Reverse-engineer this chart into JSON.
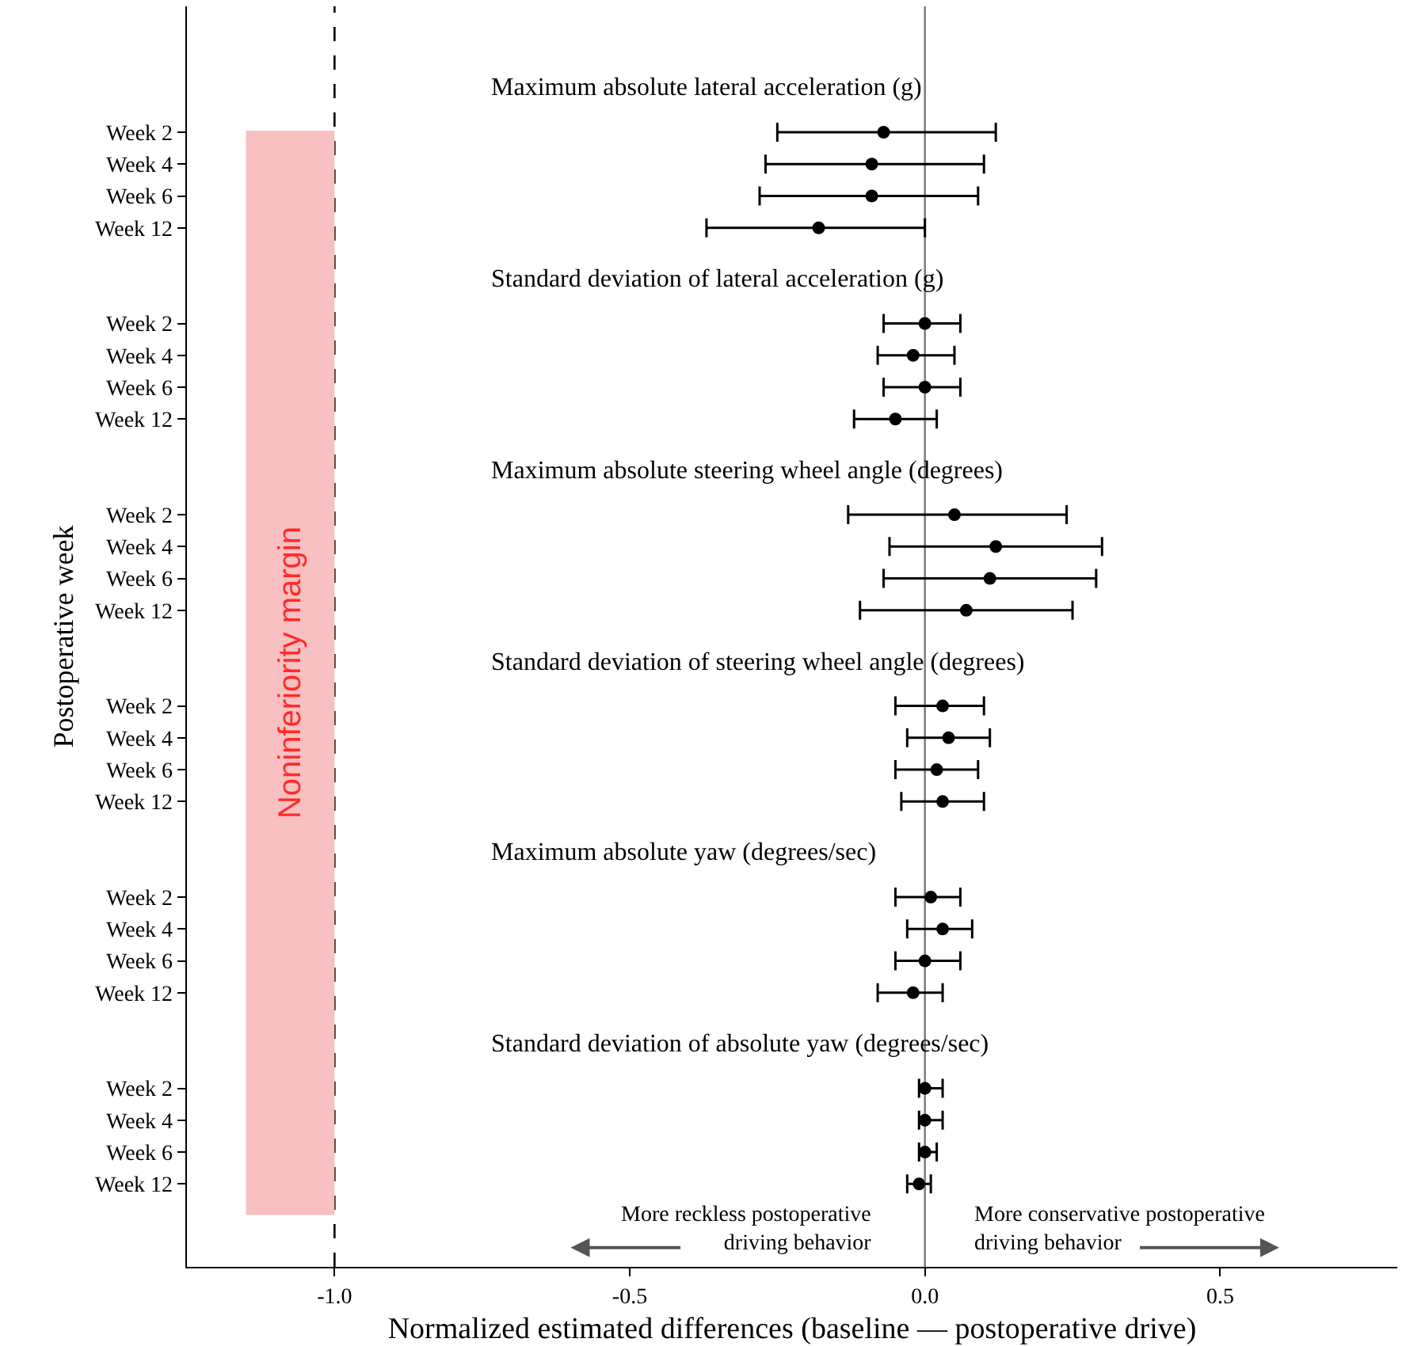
{
  "chart_data": {
    "type": "scatter",
    "orientation": "horizontal",
    "xlabel": "Normalized estimated differences (baseline — postoperative drive)",
    "ylabel": "Postoperative week",
    "categories": [
      "Week 2",
      "Week 4",
      "Week 6",
      "Week 12",
      "Week 2",
      "Week 4",
      "Week 6",
      "Week 12",
      "Week 2",
      "Week 4",
      "Week 6",
      "Week 12",
      "Week 2",
      "Week 4",
      "Week 6",
      "Week 12",
      "Week 2",
      "Week 4",
      "Week 6",
      "Week 12",
      "Week 2",
      "Week 4",
      "Week 6",
      "Week 12"
    ],
    "series": [
      {
        "color": "#000000",
        "values": [
          -0.07,
          -0.09,
          -0.09,
          -0.18,
          0.0,
          -0.02,
          0.0,
          -0.05,
          0.05,
          0.12,
          0.11,
          0.07,
          0.03,
          0.04,
          0.02,
          0.03,
          0.01,
          0.03,
          0.0,
          -0.02,
          0.0,
          0.0,
          0.0,
          -0.01
        ],
        "errors": [
          [
            -0.25,
            0.12
          ],
          [
            -0.27,
            0.1
          ],
          [
            -0.28,
            0.09
          ],
          [
            -0.37,
            0.0
          ],
          [
            -0.07,
            0.06
          ],
          [
            -0.08,
            0.05
          ],
          [
            -0.07,
            0.06
          ],
          [
            -0.12,
            0.02
          ],
          [
            -0.13,
            0.24
          ],
          [
            -0.06,
            0.3
          ],
          [
            -0.07,
            0.29
          ],
          [
            -0.11,
            0.25
          ],
          [
            -0.05,
            0.1
          ],
          [
            -0.03,
            0.11
          ],
          [
            -0.05,
            0.09
          ],
          [
            -0.04,
            0.1
          ],
          [
            -0.05,
            0.06
          ],
          [
            -0.03,
            0.08
          ],
          [
            -0.05,
            0.06
          ],
          [
            -0.08,
            0.03
          ],
          [
            -0.01,
            0.03
          ],
          [
            -0.01,
            0.03
          ],
          [
            -0.01,
            0.02
          ],
          [
            -0.03,
            0.01
          ]
        ]
      }
    ],
    "xlim": [
      -1.25,
      0.8
    ],
    "xticks": [
      {
        "value": -1,
        "label": "-1.0"
      },
      {
        "value": -0.5,
        "label": "-0.5"
      },
      {
        "value": 0,
        "label": "0.0"
      },
      {
        "value": 0.5,
        "label": "0.5"
      }
    ],
    "marker": "circle",
    "grid": false,
    "bands": [
      {
        "axis": "x",
        "from": -1.15,
        "to": -1.0,
        "label": "Noninferiority margin",
        "color": "#f8c0c0"
      }
    ],
    "ref_lines": [
      {
        "axis": "x",
        "value": -1.0,
        "color": "#000000",
        "line_style": "dashed"
      },
      {
        "axis": "x",
        "value": 0,
        "color": "#808080",
        "line_style": "solid"
      }
    ],
    "annotations": [
      "Maximum absolute lateral acceleration (g)",
      "Standard deviation of lateral acceleration (g)",
      "Maximum absolute steering wheel angle (degrees)",
      "Standard deviation of steering wheel angle (degrees)",
      "Maximum absolute yaw (degrees/sec)",
      "Standard deviation of absolute yaw (degrees/sec)",
      "More reckless postoperative\ndriving behavior",
      "More conservative postoperative\ndriving behavior"
    ]
  }
}
